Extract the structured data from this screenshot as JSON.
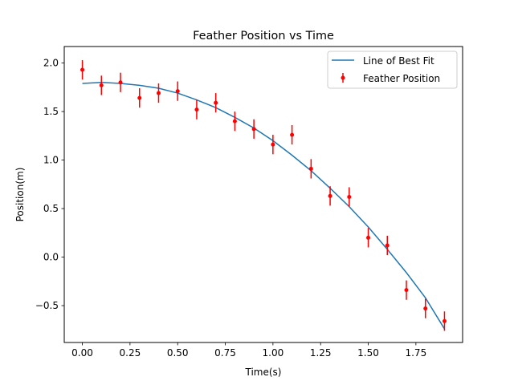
{
  "chart_data": {
    "type": "scatter",
    "title": "Feather Position vs Time",
    "xlabel": "Time(s)",
    "ylabel": "Position(m)",
    "xlim": [
      -0.095,
      1.995
    ],
    "ylim": [
      -0.88,
      2.17
    ],
    "xticks": [
      0.0,
      0.25,
      0.5,
      0.75,
      1.0,
      1.25,
      1.5,
      1.75
    ],
    "xtick_labels": [
      "0.00",
      "0.25",
      "0.50",
      "0.75",
      "1.00",
      "1.25",
      "1.50",
      "1.75"
    ],
    "yticks": [
      -0.5,
      0.0,
      0.5,
      1.0,
      1.5,
      2.0
    ],
    "ytick_labels": [
      "−0.5",
      "0.0",
      "0.5",
      "1.0",
      "1.5",
      "2.0"
    ],
    "grid": false,
    "legend_position": "top-right",
    "series": [
      {
        "name": "Line of Best Fit",
        "kind": "line",
        "color": "#1f77b4",
        "x": [
          0.0,
          0.1,
          0.2,
          0.3,
          0.4,
          0.5,
          0.6,
          0.7,
          0.8,
          0.9,
          1.0,
          1.1,
          1.2,
          1.3,
          1.4,
          1.5,
          1.6,
          1.7,
          1.8,
          1.9
        ],
        "y": [
          1.79,
          1.8,
          1.79,
          1.77,
          1.74,
          1.69,
          1.62,
          1.54,
          1.44,
          1.33,
          1.2,
          1.05,
          0.89,
          0.71,
          0.52,
          0.31,
          0.08,
          -0.16,
          -0.42,
          -0.74
        ]
      },
      {
        "name": "Feather Position",
        "kind": "errorbar",
        "color": "#ff0000",
        "x": [
          0.0,
          0.1,
          0.2,
          0.3,
          0.4,
          0.5,
          0.6,
          0.7,
          0.8,
          0.9,
          1.0,
          1.1,
          1.2,
          1.3,
          1.4,
          1.5,
          1.6,
          1.7,
          1.8,
          1.9
        ],
        "y": [
          1.93,
          1.77,
          1.8,
          1.64,
          1.69,
          1.71,
          1.52,
          1.59,
          1.4,
          1.32,
          1.16,
          1.26,
          0.91,
          0.63,
          0.62,
          0.2,
          0.12,
          -0.34,
          -0.53,
          -0.66
        ],
        "yerr": 0.1
      }
    ]
  }
}
